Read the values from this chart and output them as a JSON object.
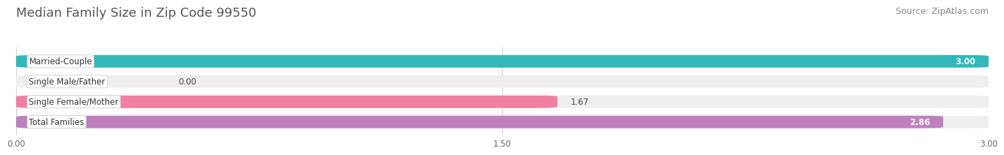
{
  "title": "Median Family Size in Zip Code 99550",
  "source": "Source: ZipAtlas.com",
  "categories": [
    "Married-Couple",
    "Single Male/Father",
    "Single Female/Mother",
    "Total Families"
  ],
  "values": [
    3.0,
    0.0,
    1.67,
    2.86
  ],
  "bar_colors": [
    "#32b8b8",
    "#a0aee8",
    "#f080a0",
    "#c080c0"
  ],
  "bar_bg_color": "#eeeeee",
  "xlim": [
    0,
    3.0
  ],
  "xticks": [
    0.0,
    1.5,
    3.0
  ],
  "xtick_labels": [
    "0.00",
    "1.50",
    "3.00"
  ],
  "title_fontsize": 13,
  "source_fontsize": 9,
  "label_fontsize": 8.5,
  "value_fontsize": 8.5,
  "bar_height": 0.62,
  "background_color": "#ffffff",
  "grid_color": "#d0d0d0"
}
